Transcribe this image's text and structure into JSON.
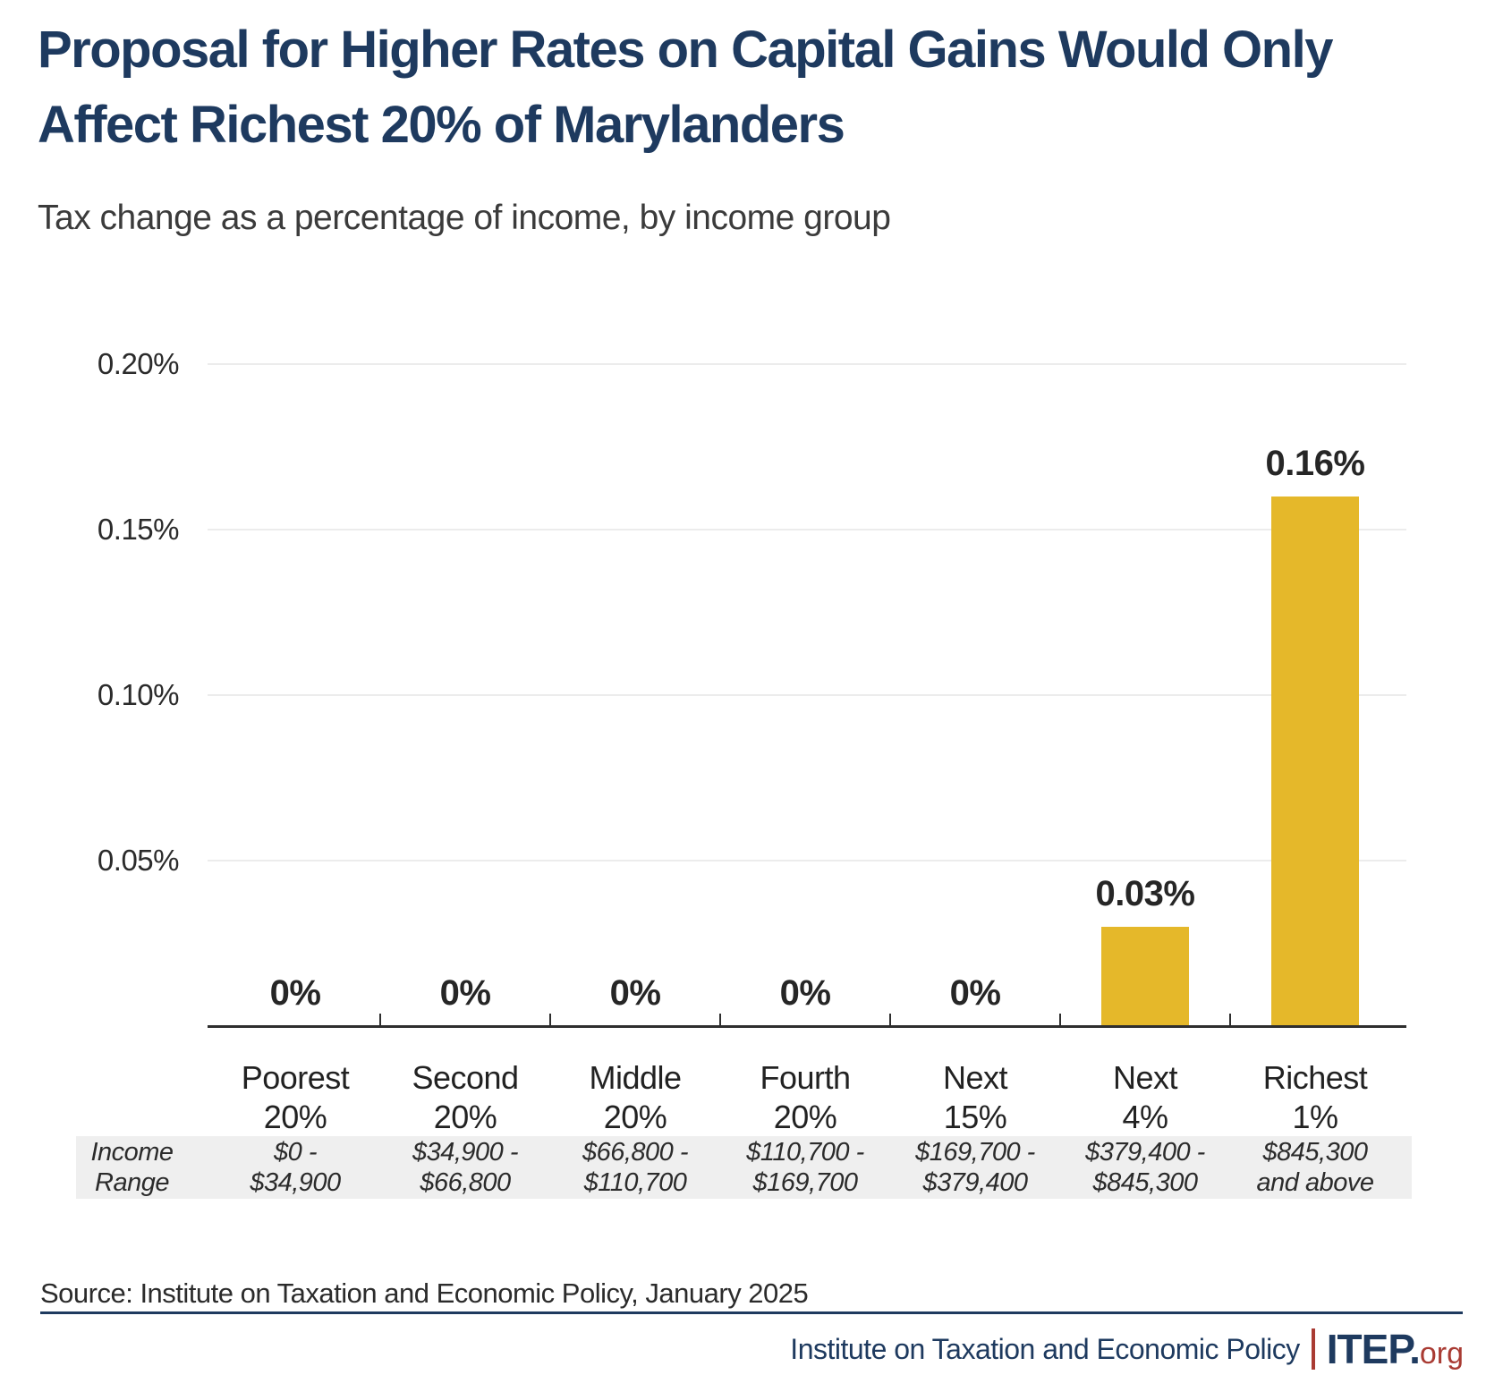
{
  "header": {
    "title_line1": "Proposal for Higher Rates on Capital Gains Would Only",
    "title_line2": "Affect Richest 20% of Marylanders",
    "subtitle": "Tax change as a percentage of income, by income group"
  },
  "chart_data": {
    "type": "bar",
    "title": "Proposal for Higher Rates on Capital Gains Would Only Affect Richest 20% of Marylanders",
    "subtitle": "Tax change as a percentage of income, by income group",
    "xlabel": "",
    "ylabel": "",
    "ylim": [
      0,
      0.2
    ],
    "grid": "horizontal",
    "legend": "none",
    "categories": [
      [
        "Poorest",
        "20%"
      ],
      [
        "Second",
        "20%"
      ],
      [
        "Middle",
        "20%"
      ],
      [
        "Fourth",
        "20%"
      ],
      [
        "Next",
        "15%"
      ],
      [
        "Next",
        "4%"
      ],
      [
        "Richest",
        "1%"
      ]
    ],
    "values": [
      0,
      0,
      0,
      0,
      0,
      0.03,
      0.16
    ],
    "value_labels": [
      "0%",
      "0%",
      "0%",
      "0%",
      "0%",
      "0.03%",
      "0.16%"
    ],
    "y_ticks": [
      {
        "label": "0.20%",
        "value": 0.2
      },
      {
        "label": "0.15%",
        "value": 0.15
      },
      {
        "label": "0.10%",
        "value": 0.1
      },
      {
        "label": "0.05%",
        "value": 0.05
      }
    ],
    "income_row_label": [
      "Income",
      "Range"
    ],
    "income_ranges": [
      [
        "$0 -",
        "$34,900"
      ],
      [
        "$34,900 -",
        "$66,800"
      ],
      [
        "$66,800 -",
        "$110,700"
      ],
      [
        "$110,700 -",
        "$169,700"
      ],
      [
        "$169,700 -",
        "$379,400"
      ],
      [
        "$379,400 -",
        "$845,300"
      ],
      [
        "$845,300",
        "and above"
      ]
    ]
  },
  "colors": {
    "bar": "#E5B82A",
    "navy": "#1E3A5F",
    "red": "#A93B33",
    "gridline": "#ECECEC",
    "axis": "#2E2E2E",
    "band_bg": "#EFEFEF"
  },
  "footer": {
    "source": "Source: Institute on Taxation and Economic Policy, January 2025",
    "org_name": "Institute on Taxation and Economic Policy",
    "logo_itep": "ITEP.",
    "logo_org": "org"
  }
}
